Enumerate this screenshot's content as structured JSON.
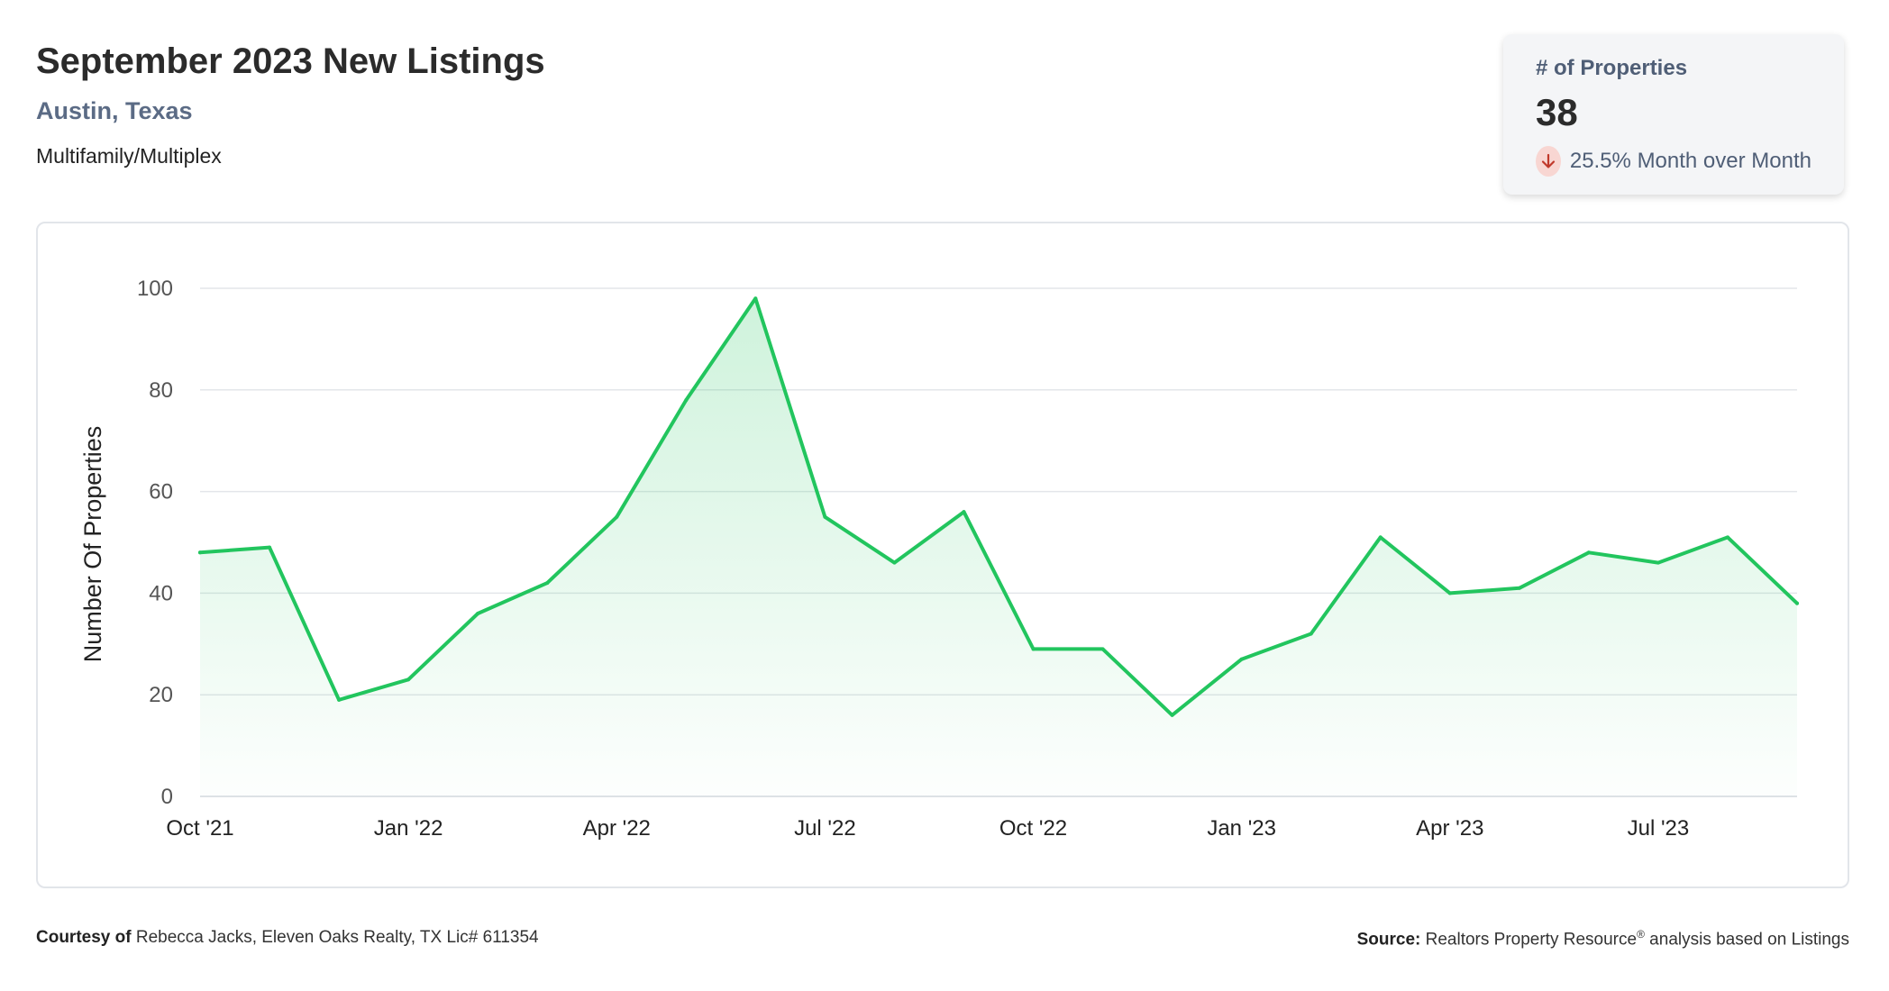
{
  "header": {
    "title": "September 2023 New Listings",
    "location": "Austin, Texas",
    "property_type": "Multifamily/Multiplex"
  },
  "kpi": {
    "label": "# of Properties",
    "value": "38",
    "change_text": "25.5% Month over Month",
    "change_direction": "down",
    "icon": "arrow-down-icon"
  },
  "footer": {
    "courtesy_label": "Courtesy of",
    "courtesy_text": "Rebecca Jacks, Eleven Oaks Realty, TX Lic# 611354",
    "source_label": "Source:",
    "source_text_pre": "Realtors Property Resource",
    "source_mark": "®",
    "source_text_post": " analysis based on Listings"
  },
  "colors": {
    "line": "#22c55e",
    "fill": "#22c55e",
    "grid": "#e3e6ea",
    "title": "#2b2b2b",
    "subtitle": "#5b6b85",
    "down_badge": "#f8d6d2",
    "down_arrow": "#c0392b"
  },
  "chart_data": {
    "type": "area",
    "ylabel": "Number Of Properties",
    "xlabel": "",
    "ylim": [
      0,
      100
    ],
    "y_ticks": [
      0,
      20,
      40,
      60,
      80,
      100
    ],
    "x": [
      "2021-10",
      "2021-11",
      "2021-12",
      "2022-01",
      "2022-02",
      "2022-03",
      "2022-04",
      "2022-05",
      "2022-06",
      "2022-07",
      "2022-08",
      "2022-09",
      "2022-10",
      "2022-11",
      "2022-12",
      "2023-01",
      "2023-02",
      "2023-03",
      "2023-04",
      "2023-05",
      "2023-06",
      "2023-07",
      "2023-08",
      "2023-09"
    ],
    "x_tick_labels": [
      {
        "x": "2021-10",
        "label": "Oct '21"
      },
      {
        "x": "2022-01",
        "label": "Jan '22"
      },
      {
        "x": "2022-04",
        "label": "Apr '22"
      },
      {
        "x": "2022-07",
        "label": "Jul '22"
      },
      {
        "x": "2022-10",
        "label": "Oct '22"
      },
      {
        "x": "2023-01",
        "label": "Jan '23"
      },
      {
        "x": "2023-04",
        "label": "Apr '23"
      },
      {
        "x": "2023-07",
        "label": "Jul '23"
      }
    ],
    "series": [
      {
        "values": [
          48,
          49,
          19,
          23,
          36,
          42,
          55,
          78,
          98,
          55,
          46,
          56,
          29,
          29,
          16,
          27,
          32,
          51,
          40,
          41,
          48,
          46,
          51,
          38
        ]
      }
    ],
    "grid": true,
    "legend": "none"
  }
}
